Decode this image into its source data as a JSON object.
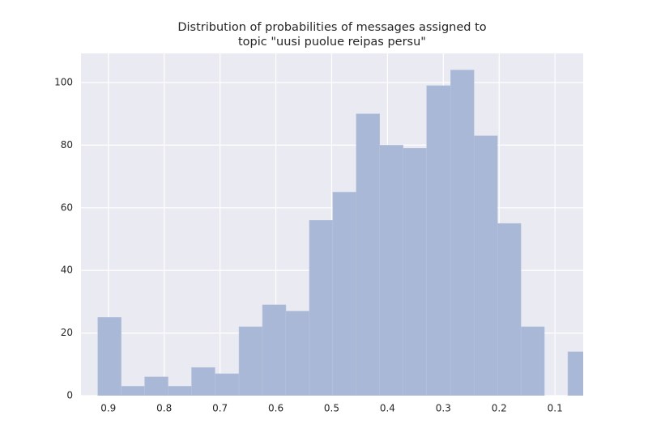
{
  "chart_data": {
    "type": "histogram",
    "title": [
      "Distribution of probabilities of messages assigned to",
      "topic \"uusi puolue reipas persu\""
    ],
    "bins": [
      0.919,
      0.877,
      0.835,
      0.793,
      0.751,
      0.709,
      0.666,
      0.624,
      0.582,
      0.54,
      0.498,
      0.456,
      0.414,
      0.372,
      0.33,
      0.287,
      0.245,
      0.203,
      0.161,
      0.119,
      0.077,
      0.035
    ],
    "values": [
      25,
      3,
      6,
      3,
      9,
      7,
      22,
      29,
      27,
      56,
      65,
      90,
      80,
      79,
      99,
      104,
      83,
      55,
      22,
      0,
      14
    ],
    "color": "#a9b8d6",
    "xlim": [
      0.949,
      0.0495
    ],
    "xticks": [
      0.9,
      0.8,
      0.7,
      0.6,
      0.5,
      0.4,
      0.3,
      0.2,
      0.1
    ],
    "ylim": [
      0,
      109.3
    ],
    "yticks": [
      0,
      20,
      40,
      60,
      80,
      100
    ],
    "grid": true
  }
}
